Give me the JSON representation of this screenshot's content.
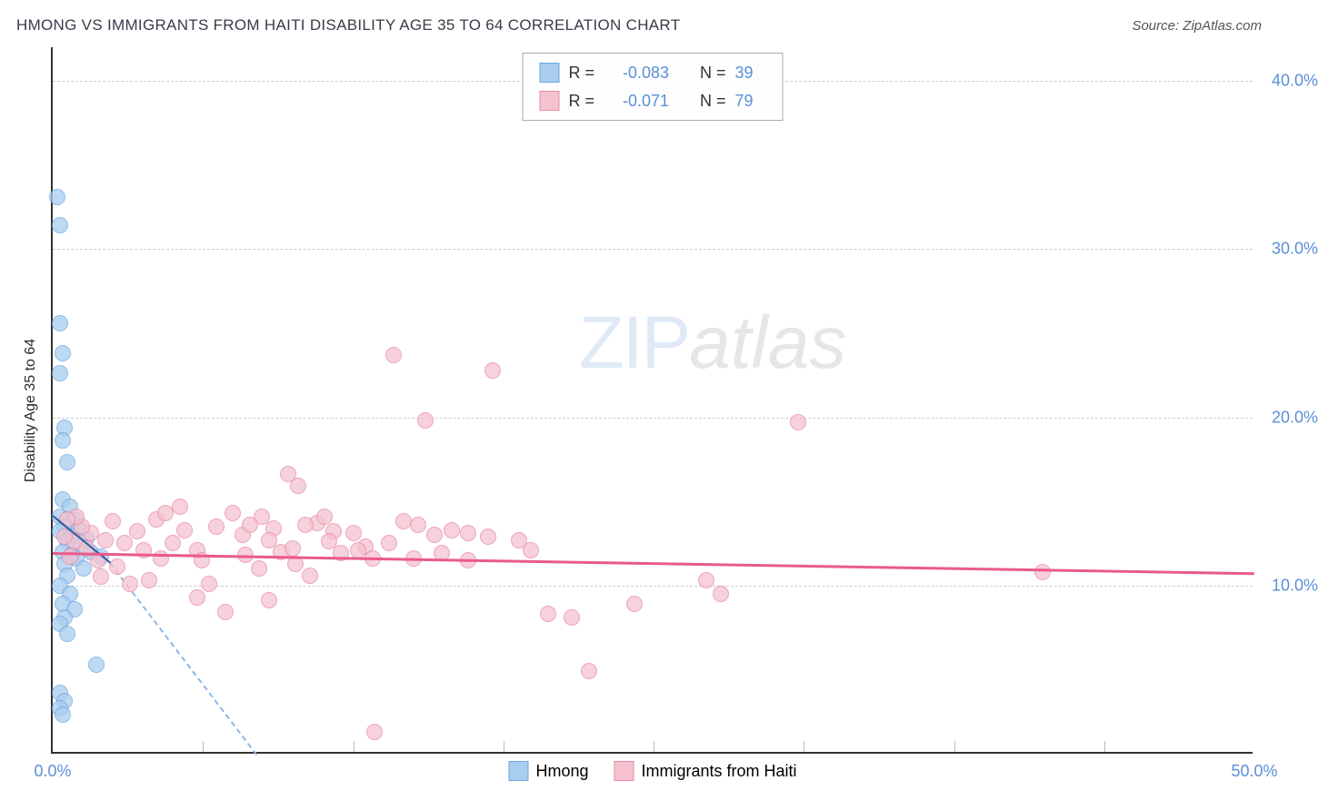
{
  "title": "HMONG VS IMMIGRANTS FROM HAITI DISABILITY AGE 35 TO 64 CORRELATION CHART",
  "source": "Source: ZipAtlas.com",
  "ylabel": "Disability Age 35 to 64",
  "watermark": {
    "part1": "ZIP",
    "part2": "atlas"
  },
  "chart": {
    "type": "scatter",
    "xlim": [
      0,
      50
    ],
    "ylim": [
      0,
      42
    ],
    "x_ticks": [
      0,
      50
    ],
    "x_tick_labels": [
      "0.0%",
      "50.0%"
    ],
    "x_minor_ticks": [
      6.25,
      12.5,
      18.75,
      25,
      31.25,
      37.5,
      43.75
    ],
    "y_ticks": [
      10,
      20,
      30,
      40
    ],
    "y_tick_labels": [
      "10.0%",
      "20.0%",
      "30.0%",
      "40.0%"
    ],
    "background_color": "#ffffff",
    "grid_color": "#cccccc",
    "axis_color": "#333333",
    "tick_label_color": "#5b8fd6",
    "title_color": "#3a3a4a",
    "title_fontsize": 17,
    "label_fontsize": 16,
    "tick_fontsize": 18,
    "marker_radius": 9,
    "marker_stroke": 1.5,
    "marker_fill_opacity": 0.35
  },
  "series": [
    {
      "name": "Hmong",
      "color_fill": "#a9cdef",
      "color_stroke": "#6ea6dd",
      "R_label": "R =",
      "R_value": "-0.083",
      "N_label": "N =",
      "N_value": "39",
      "trend": {
        "x0": 0,
        "y0": 14.2,
        "x1": 2.4,
        "y1": 11.4,
        "color": "#2b5aa0",
        "dash_ext": {
          "x1": 8.5,
          "y1": 0,
          "color": "#8fb6e2"
        },
        "width": 2.5
      },
      "points": [
        [
          0.2,
          33.0
        ],
        [
          0.3,
          31.3
        ],
        [
          0.3,
          25.5
        ],
        [
          0.4,
          23.7
        ],
        [
          0.3,
          22.5
        ],
        [
          0.5,
          19.3
        ],
        [
          0.4,
          18.5
        ],
        [
          0.6,
          17.2
        ],
        [
          0.4,
          15.0
        ],
        [
          0.7,
          14.6
        ],
        [
          0.3,
          14.0
        ],
        [
          0.9,
          13.8
        ],
        [
          0.5,
          13.4
        ],
        [
          1.1,
          13.3
        ],
        [
          0.3,
          13.1
        ],
        [
          0.8,
          12.8
        ],
        [
          1.4,
          12.7
        ],
        [
          0.6,
          12.5
        ],
        [
          1.2,
          12.2
        ],
        [
          0.4,
          11.9
        ],
        [
          1.6,
          11.9
        ],
        [
          0.8,
          11.7
        ],
        [
          2.0,
          11.6
        ],
        [
          1.0,
          11.5
        ],
        [
          0.5,
          11.2
        ],
        [
          1.3,
          10.9
        ],
        [
          0.6,
          10.5
        ],
        [
          0.3,
          9.9
        ],
        [
          0.7,
          9.4
        ],
        [
          0.4,
          8.8
        ],
        [
          0.9,
          8.5
        ],
        [
          0.5,
          8.0
        ],
        [
          0.3,
          7.6
        ],
        [
          0.6,
          7.0
        ],
        [
          1.8,
          5.2
        ],
        [
          0.3,
          3.5
        ],
        [
          0.5,
          3.0
        ],
        [
          0.3,
          2.6
        ],
        [
          0.4,
          2.2
        ]
      ]
    },
    {
      "name": "Immigrants from Haiti",
      "color_fill": "#f5c2cf",
      "color_stroke": "#e88aa3",
      "R_label": "R =",
      "R_value": "-0.071",
      "N_label": "N =",
      "N_value": "79",
      "trend": {
        "x0": 0,
        "y0": 12.0,
        "x1": 50,
        "y1": 10.8,
        "color": "#e95a8c",
        "width": 3
      },
      "points": [
        [
          14.2,
          23.6
        ],
        [
          18.3,
          22.7
        ],
        [
          31.0,
          19.6
        ],
        [
          15.5,
          19.7
        ],
        [
          9.8,
          16.5
        ],
        [
          10.2,
          15.8
        ],
        [
          14.6,
          13.7
        ],
        [
          15.2,
          13.5
        ],
        [
          15.9,
          12.9
        ],
        [
          16.6,
          13.2
        ],
        [
          17.3,
          13.0
        ],
        [
          18.1,
          12.8
        ],
        [
          13.4,
          1.2
        ],
        [
          11.0,
          13.6
        ],
        [
          11.7,
          13.1
        ],
        [
          8.7,
          14.0
        ],
        [
          9.2,
          13.3
        ],
        [
          7.5,
          14.2
        ],
        [
          6.8,
          13.4
        ],
        [
          6.0,
          12.0
        ],
        [
          5.5,
          13.2
        ],
        [
          5.0,
          12.4
        ],
        [
          4.5,
          11.5
        ],
        [
          4.3,
          13.8
        ],
        [
          3.8,
          12.0
        ],
        [
          3.5,
          13.1
        ],
        [
          4.0,
          10.2
        ],
        [
          3.0,
          12.4
        ],
        [
          2.7,
          11.0
        ],
        [
          2.5,
          13.7
        ],
        [
          2.2,
          12.6
        ],
        [
          1.9,
          11.4
        ],
        [
          1.6,
          13.0
        ],
        [
          1.4,
          12.1
        ],
        [
          1.2,
          13.4
        ],
        [
          0.9,
          12.5
        ],
        [
          0.7,
          11.6
        ],
        [
          0.5,
          12.8
        ],
        [
          12.5,
          13.0
        ],
        [
          13.0,
          12.2
        ],
        [
          10.1,
          11.2
        ],
        [
          10.7,
          10.5
        ],
        [
          8.0,
          11.7
        ],
        [
          8.6,
          10.9
        ],
        [
          7.2,
          8.3
        ],
        [
          6.5,
          10.0
        ],
        [
          6.2,
          11.4
        ],
        [
          9.0,
          12.6
        ],
        [
          9.5,
          11.9
        ],
        [
          7.9,
          12.9
        ],
        [
          11.5,
          12.5
        ],
        [
          12.0,
          11.8
        ],
        [
          12.7,
          12.0
        ],
        [
          13.3,
          11.5
        ],
        [
          19.4,
          12.6
        ],
        [
          19.9,
          12.0
        ],
        [
          20.6,
          8.2
        ],
        [
          21.6,
          8.0
        ],
        [
          22.3,
          4.8
        ],
        [
          27.2,
          10.2
        ],
        [
          27.8,
          9.4
        ],
        [
          24.2,
          8.8
        ],
        [
          41.2,
          10.7
        ],
        [
          17.3,
          11.4
        ],
        [
          10.5,
          13.5
        ],
        [
          9.0,
          9.0
        ],
        [
          6.0,
          9.2
        ],
        [
          4.7,
          14.2
        ],
        [
          5.3,
          14.6
        ],
        [
          8.2,
          13.5
        ],
        [
          11.3,
          14.0
        ],
        [
          14.0,
          12.4
        ],
        [
          15.0,
          11.5
        ],
        [
          16.2,
          11.8
        ],
        [
          10.0,
          12.1
        ],
        [
          3.2,
          10.0
        ],
        [
          2.0,
          10.4
        ],
        [
          1.0,
          14.0
        ],
        [
          0.6,
          13.8
        ]
      ]
    }
  ],
  "legend_bottom": [
    {
      "label": "Hmong",
      "fill": "#a9cdef",
      "stroke": "#6ea6dd"
    },
    {
      "label": "Immigrants from Haiti",
      "fill": "#f5c2cf",
      "stroke": "#e88aa3"
    }
  ]
}
